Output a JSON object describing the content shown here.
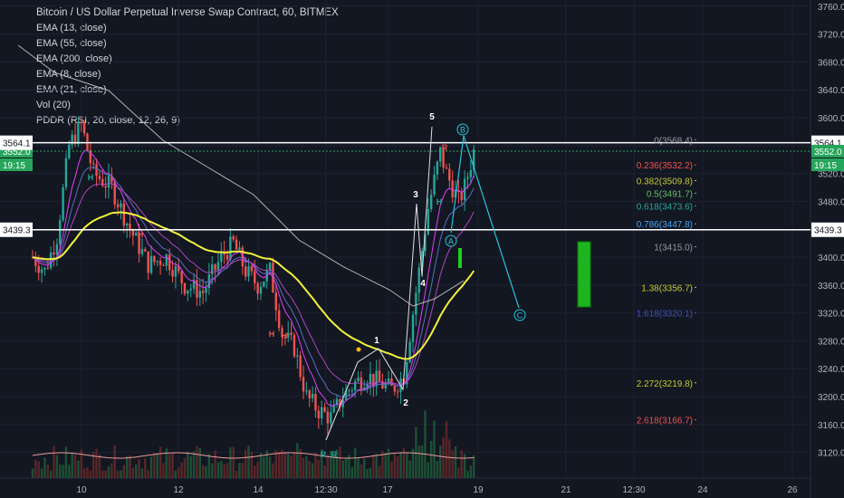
{
  "title": "Bitcoin / US Dollar Perpetual Inverse Swap Contract, 60, BITMEX",
  "indicators": [
    "EMA (13, close)",
    "EMA (55, close)",
    "EMA (200, close)",
    "EMA (8, close)",
    "EMA (21, close)",
    "Vol (20)",
    "PDDR (RSI, 20, close, 12, 26, 9)"
  ],
  "colors": {
    "background": "#131722",
    "up": "#26a69a",
    "down": "#ef5350",
    "ema_yellow": "#f2f23a",
    "ema_200": "#d9d9d9",
    "projection": "#26c6da",
    "box": "#1fd11f"
  },
  "chart_data": {
    "type": "candlestick",
    "yticks": [
      3120,
      3160,
      3200,
      3240,
      3280,
      3320,
      3360,
      3400,
      3440,
      3480,
      3520,
      3560,
      3600,
      3640,
      3680,
      3720,
      3760
    ],
    "ytick_labels": [
      "3120.0",
      "3160.0",
      "3200.0",
      "3240.0",
      "3280.0",
      "3320.0",
      "3360.0",
      "3400.0",
      "3440.0",
      "3480.0",
      "3520.0",
      "3560.0",
      "3600.0",
      "3640.0",
      "3680.0",
      "3720.0",
      "3760.0"
    ],
    "xticks": [
      "10",
      "12",
      "14",
      "12:30",
      "17",
      "19",
      "21",
      "12:30",
      "24",
      "26"
    ],
    "price_path": [
      [
        0,
        3400
      ],
      [
        4,
        3380
      ],
      [
        8,
        3430
      ],
      [
        12,
        3560
      ],
      [
        16,
        3590
      ],
      [
        20,
        3520
      ],
      [
        26,
        3500
      ],
      [
        32,
        3440
      ],
      [
        38,
        3390
      ],
      [
        44,
        3400
      ],
      [
        50,
        3360
      ],
      [
        56,
        3350
      ],
      [
        62,
        3400
      ],
      [
        66,
        3420
      ],
      [
        70,
        3380
      ],
      [
        74,
        3360
      ],
      [
        78,
        3380
      ],
      [
        82,
        3290
      ],
      [
        86,
        3270
      ],
      [
        90,
        3200
      ],
      [
        94,
        3180
      ],
      [
        98,
        3170
      ],
      [
        102,
        3200
      ],
      [
        106,
        3220
      ],
      [
        110,
        3230
      ],
      [
        114,
        3220
      ],
      [
        118,
        3210
      ],
      [
        122,
        3230
      ],
      [
        126,
        3350
      ],
      [
        130,
        3470
      ],
      [
        134,
        3550
      ],
      [
        136,
        3520
      ],
      [
        140,
        3480
      ],
      [
        142,
        3500
      ],
      [
        145,
        3552
      ]
    ],
    "current_price": "3552.0",
    "countdown": "19:15",
    "horizontal_levels": [
      {
        "label": "3564.1",
        "value": 3564.1
      },
      {
        "label": "3439.3",
        "value": 3439.3
      }
    ],
    "fibonacci": [
      {
        "label": "0(3568.4)",
        "value": 3568.4,
        "color": "#9598a1"
      },
      {
        "label": "0.236(3532.2)",
        "value": 3532.2,
        "color": "#ef5350"
      },
      {
        "label": "0.382(3509.8)",
        "value": 3509.8,
        "color": "#c0ca33"
      },
      {
        "label": "0.5(3491.7)",
        "value": 3491.7,
        "color": "#66bb6a"
      },
      {
        "label": "0.618(3473.6)",
        "value": 3473.6,
        "color": "#26a69a"
      },
      {
        "label": "0.786(3447.8)",
        "value": 3447.8,
        "color": "#42a5f5"
      },
      {
        "label": "1(3415.0)",
        "value": 3415.0,
        "color": "#9598a1"
      },
      {
        "label": "1.38(3356.7)",
        "value": 3356.7,
        "color": "#c0ca33"
      },
      {
        "label": "1.618(3320.1)",
        "value": 3320.1,
        "color": "#3f51b5"
      },
      {
        "label": "2.272(3219.8)",
        "value": 3219.8,
        "color": "#c0ca33"
      },
      {
        "label": "2.618(3166.7)",
        "value": 3166.7,
        "color": "#ef5350"
      }
    ],
    "wave_labels": [
      "1",
      "2",
      "3",
      "4",
      "5"
    ],
    "abc_labels": [
      "A",
      "B",
      "C"
    ],
    "candle_markers": [
      "H",
      "H",
      "H",
      "H",
      "H",
      "R",
      "R",
      "R"
    ]
  }
}
